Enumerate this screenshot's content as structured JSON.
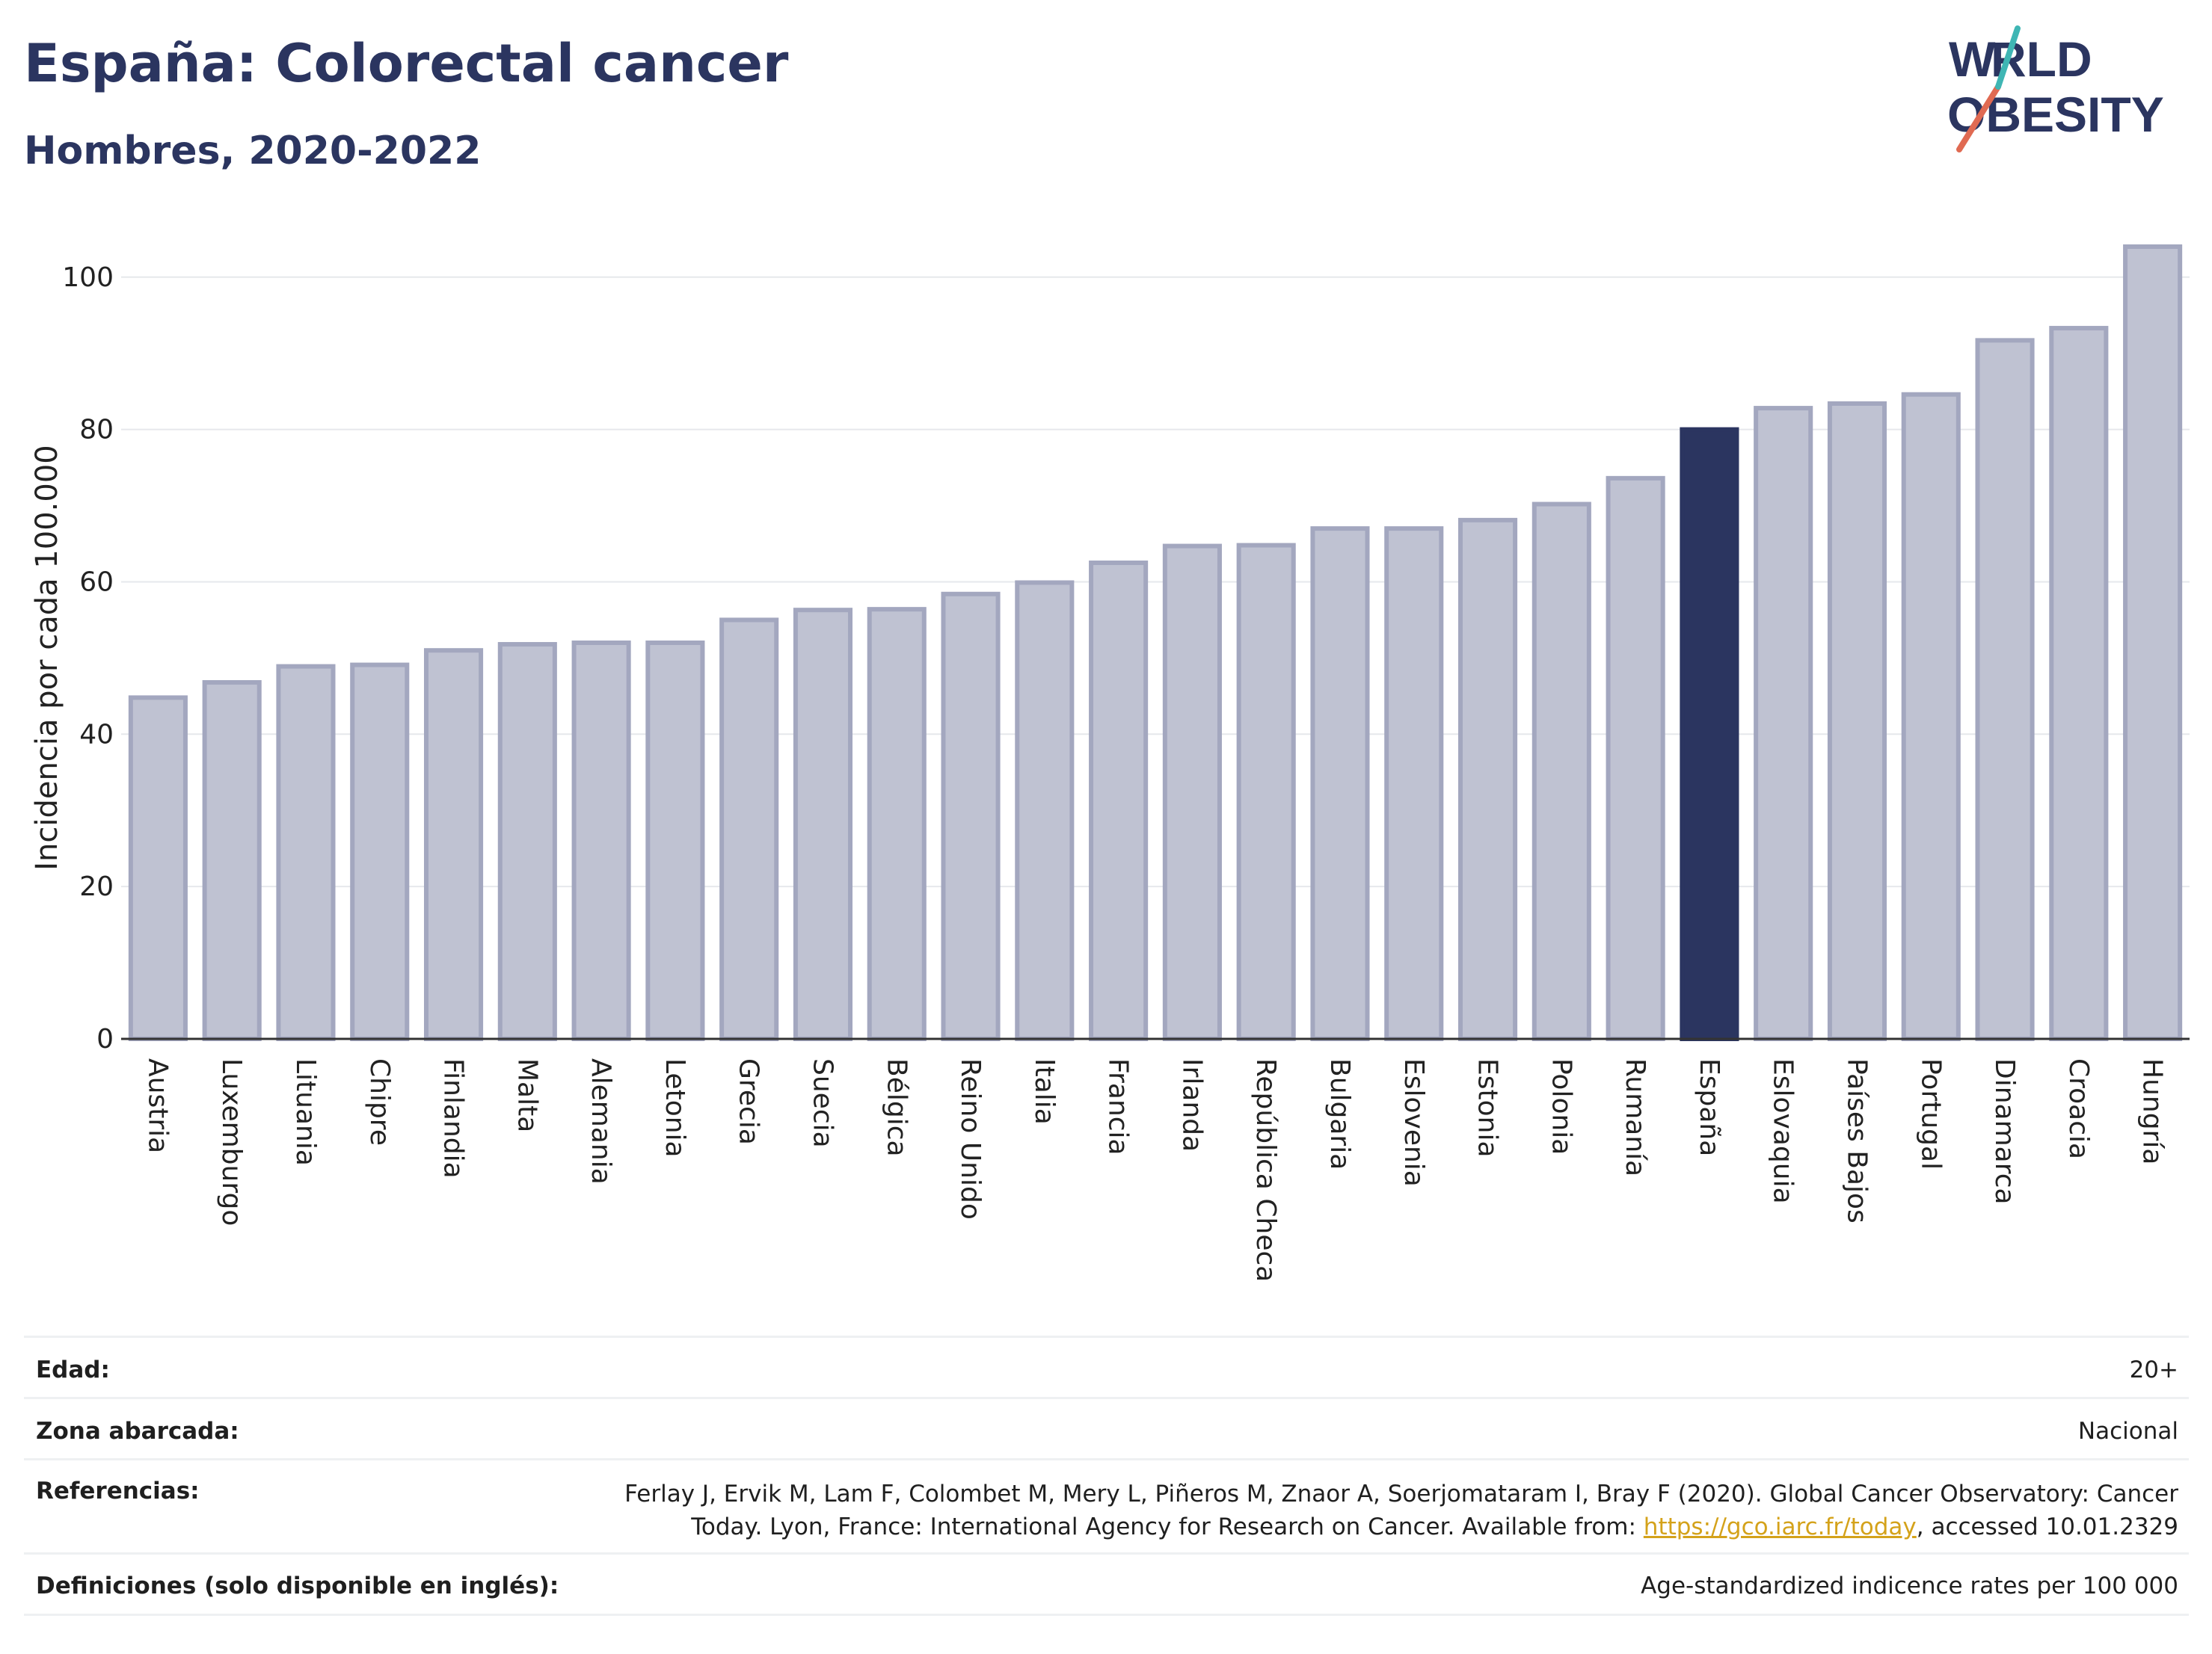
{
  "header": {
    "title": "España: Colorectal cancer",
    "subtitle": "Hombres, 2020-2022",
    "logo_text": "WORLD OBESITY"
  },
  "colors": {
    "highlight": "#2b3560",
    "bar": "#bfc2d2",
    "bar_border": "#a3a7bf",
    "grid": "#e6e8ec",
    "title": "#2b3560"
  },
  "chart_data": {
    "type": "bar",
    "title": "España: Colorectal cancer",
    "subtitle": "Hombres, 2020-2022",
    "ylabel": "Incidencia por cada 100.000",
    "xlabel": "",
    "ylim": [
      0,
      104
    ],
    "yticks": [
      0,
      20,
      40,
      60,
      80,
      100
    ],
    "grid": true,
    "highlight": "España",
    "categories": [
      "Austria",
      "Luxemburgo",
      "Lituania",
      "Chipre",
      "Finlandia",
      "Malta",
      "Alemania",
      "Letonia",
      "Grecia",
      "Suecia",
      "Bélgica",
      "Reino Unido",
      "Italia",
      "Francia",
      "Irlanda",
      "República Checa",
      "Bulgaria",
      "Eslovenia",
      "Estonia",
      "Polonia",
      "Rumanía",
      "España",
      "Eslovaquia",
      "Países Bajos",
      "Portugal",
      "Dinamarca",
      "Croacia",
      "Hungría"
    ],
    "values": [
      44.8,
      46.8,
      48.9,
      49.1,
      51.0,
      51.8,
      52.0,
      52.0,
      55.0,
      56.3,
      56.4,
      58.4,
      59.9,
      62.5,
      64.7,
      64.8,
      67.0,
      67.0,
      68.1,
      70.2,
      73.6,
      80.0,
      82.8,
      83.4,
      84.6,
      91.7,
      93.3,
      104.0
    ]
  },
  "meta": {
    "age_label": "Edad:",
    "age_value": "20+",
    "zone_label": "Zona abarcada:",
    "zone_value": "Nacional",
    "refs_label": "Referencias:",
    "refs_text_1": "Ferlay J, Ervik M, Lam F, Colombet M, Mery L, Piñeros M, Znaor A, Soerjomataram I, Bray F (2020). Global Cancer Observatory: Cancer",
    "refs_text_2": "Today. Lyon, France: International Agency for Research on Cancer. Available from: ",
    "refs_link": "https://gco.iarc.fr/today",
    "refs_text_3": ", accessed 10.01.2329",
    "defs_label": "Definiciones (solo disponible en inglés):",
    "defs_value": "Age-standardized indicence rates per 100 000"
  }
}
